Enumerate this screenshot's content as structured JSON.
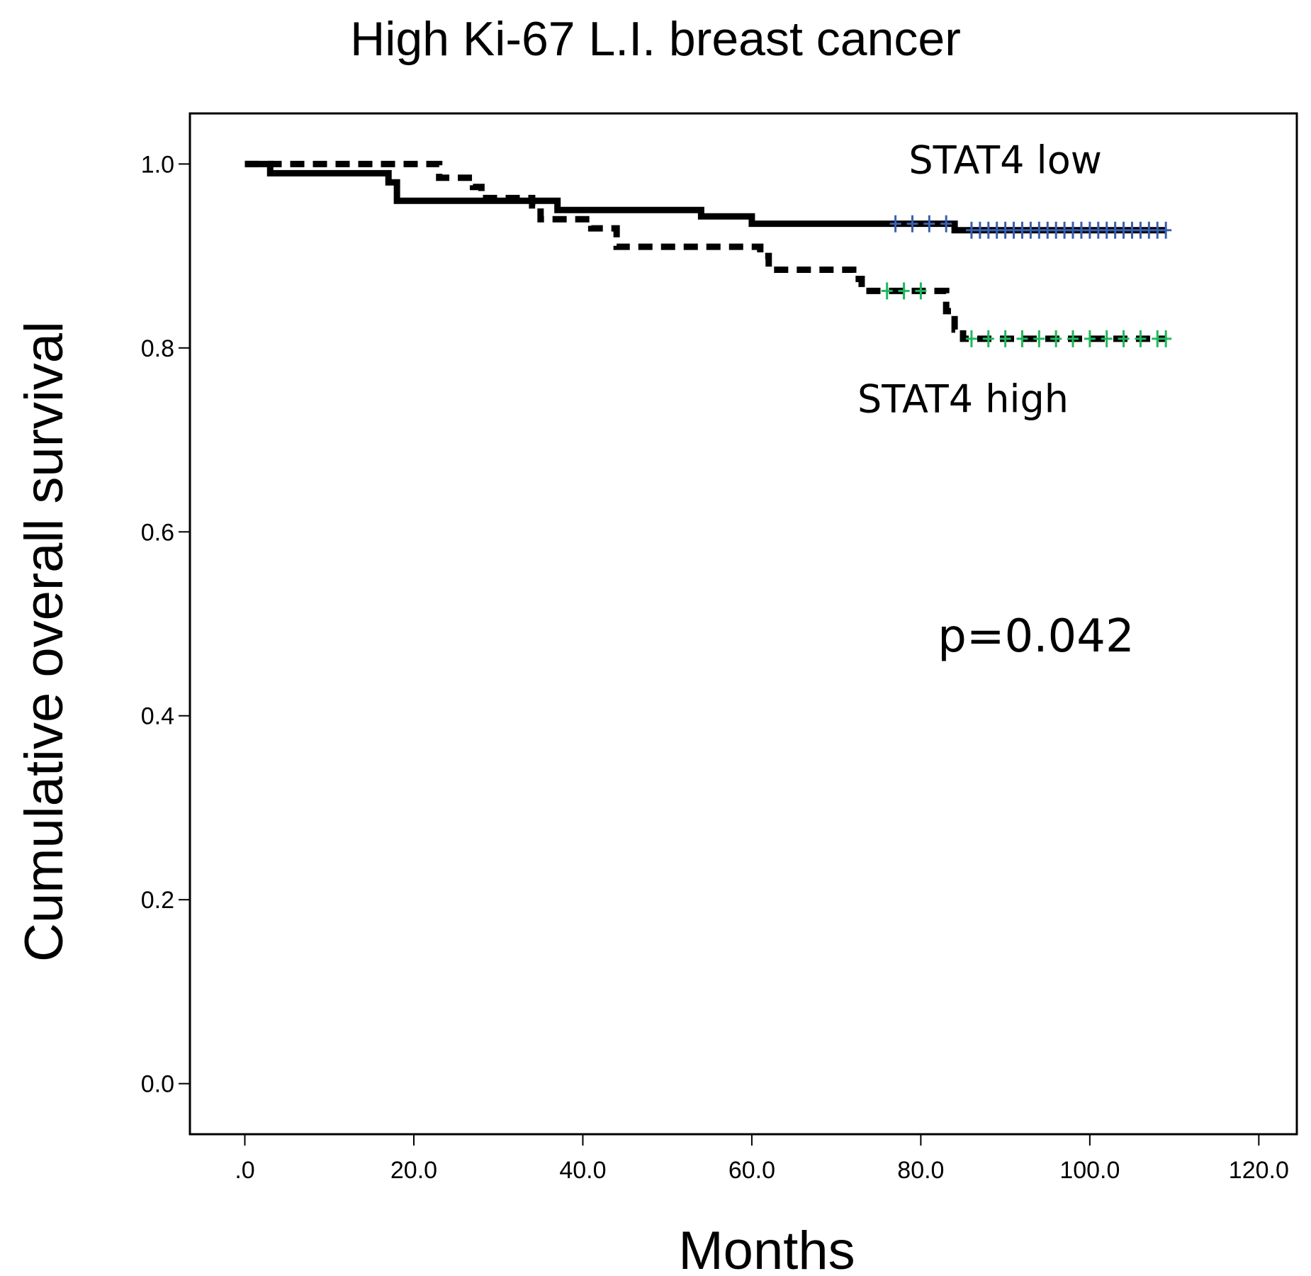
{
  "chart_data": {
    "type": "line",
    "subtype": "kaplan-meier",
    "title": "High Ki-67 L.I. breast cancer",
    "xlabel": "Months",
    "ylabel": "Cumulative overall survival",
    "xlim": [
      -6.5,
      124.5
    ],
    "ylim": [
      -0.055,
      1.055
    ],
    "x_ticks": [
      0,
      20,
      40,
      60,
      80,
      100,
      120
    ],
    "x_tick_labels": [
      ".0",
      "20.0",
      "40.0",
      "60.0",
      "80.0",
      "100.0",
      "120.0"
    ],
    "y_ticks": [
      0.0,
      0.2,
      0.4,
      0.6,
      0.8,
      1.0
    ],
    "y_tick_labels": [
      "0.0",
      "0.2",
      "0.4",
      "0.6",
      "0.8",
      "1.0"
    ],
    "grid": false,
    "annotations": [
      {
        "text": "STAT4 low",
        "series": "STAT4 low",
        "x": 90,
        "y": 0.99
      },
      {
        "text": "STAT4 high",
        "series": "STAT4 high",
        "x": 85,
        "y": 0.73
      },
      {
        "text": "p=0.042",
        "x": 82,
        "y": 0.47
      }
    ],
    "series": [
      {
        "name": "STAT4 low",
        "line_style": "solid",
        "color": "#000000",
        "censor_color": "#3a5fb0",
        "steps": [
          [
            0,
            1.0
          ],
          [
            3,
            0.99
          ],
          [
            17,
            0.98
          ],
          [
            18,
            0.96
          ],
          [
            36,
            0.96
          ],
          [
            37,
            0.95
          ],
          [
            53,
            0.95
          ],
          [
            54,
            0.943
          ],
          [
            59,
            0.943
          ],
          [
            60,
            0.935
          ],
          [
            83,
            0.935
          ],
          [
            84,
            0.928
          ],
          [
            109,
            0.928
          ]
        ],
        "censored": [
          77,
          79,
          81,
          83,
          86,
          87,
          88,
          89,
          90,
          91,
          92,
          93,
          94,
          95,
          96,
          97,
          98,
          99,
          100,
          101,
          102,
          103,
          104,
          105,
          106,
          107,
          108,
          109
        ]
      },
      {
        "name": "STAT4 high",
        "line_style": "dashed",
        "color": "#000000",
        "censor_color": "#1fb85a",
        "steps": [
          [
            0,
            1.0
          ],
          [
            22,
            1.0
          ],
          [
            23,
            0.985
          ],
          [
            27,
            0.975
          ],
          [
            28,
            0.963
          ],
          [
            34,
            0.955
          ],
          [
            35,
            0.94
          ],
          [
            41,
            0.93
          ],
          [
            44,
            0.91
          ],
          [
            59,
            0.91
          ],
          [
            61,
            0.9
          ],
          [
            62,
            0.885
          ],
          [
            72,
            0.875
          ],
          [
            73,
            0.862
          ],
          [
            82,
            0.862
          ],
          [
            83,
            0.84
          ],
          [
            84,
            0.82
          ],
          [
            85,
            0.81
          ],
          [
            109,
            0.81
          ]
        ],
        "censored": [
          76,
          78,
          80,
          86,
          88,
          90,
          92,
          94,
          96,
          98,
          100,
          102,
          104,
          106,
          108,
          109
        ]
      }
    ]
  }
}
